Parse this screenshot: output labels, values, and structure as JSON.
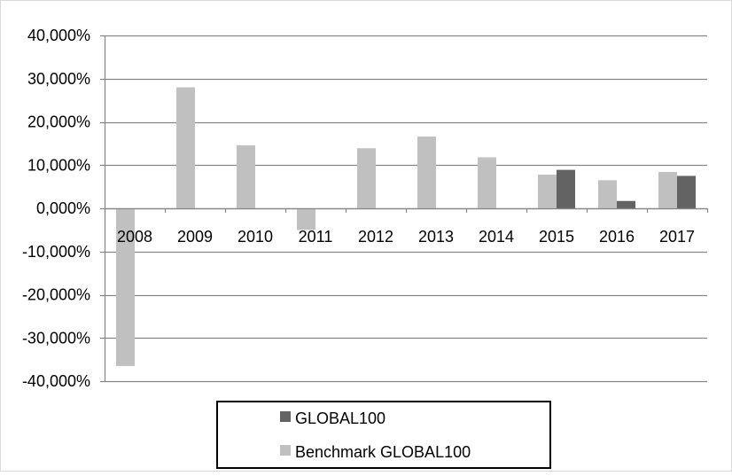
{
  "chart_data": {
    "type": "bar",
    "categories": [
      "2008",
      "2009",
      "2010",
      "2011",
      "2012",
      "2013",
      "2014",
      "2015",
      "2016",
      "2017"
    ],
    "series": [
      {
        "name": "Benchmark GLOBAL100",
        "color": "#c0c0c0",
        "values": [
          -36.5,
          28.0,
          14.6,
          -5.0,
          13.9,
          16.6,
          11.8,
          7.8,
          6.5,
          8.4
        ]
      },
      {
        "name": "GLOBAL100",
        "color": "#636363",
        "values": [
          null,
          null,
          null,
          null,
          null,
          null,
          null,
          8.9,
          1.7,
          7.5
        ]
      }
    ],
    "y_ticks": [
      {
        "value": 40,
        "label": "40,000%"
      },
      {
        "value": 30,
        "label": "30,000%"
      },
      {
        "value": 20,
        "label": "20,000%"
      },
      {
        "value": 10,
        "label": "10,000%"
      },
      {
        "value": 0,
        "label": "0,000%"
      },
      {
        "value": -10,
        "label": "-10,000%"
      },
      {
        "value": -20,
        "label": "-20,000%"
      },
      {
        "value": -30,
        "label": "-30,000%"
      },
      {
        "value": -40,
        "label": "-40,000%"
      }
    ],
    "ylim": [
      -40,
      40
    ],
    "grid": true,
    "legend": {
      "position": "bottom",
      "entries": [
        "GLOBAL100",
        "Benchmark GLOBAL100"
      ]
    },
    "title": "",
    "xlabel": "",
    "ylabel": ""
  }
}
